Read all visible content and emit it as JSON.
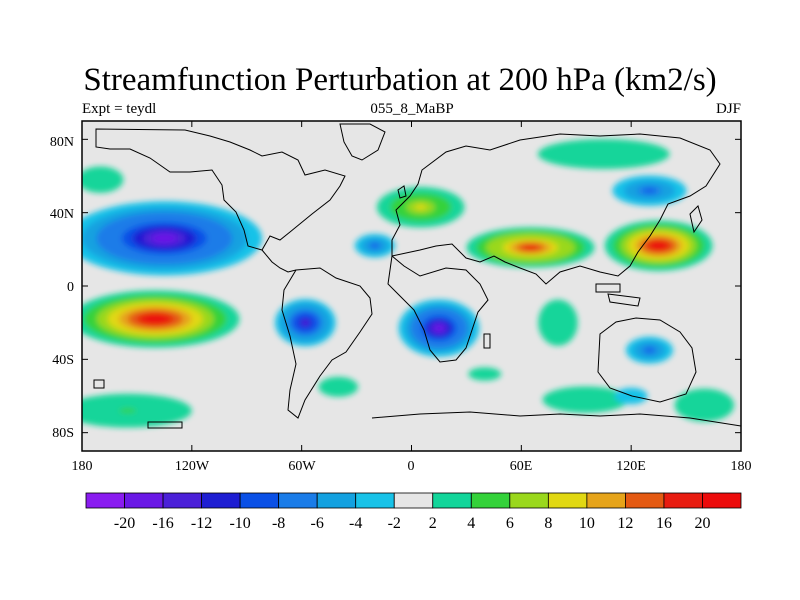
{
  "title": "Streamfunction Perturbation at 200 hPa (km2/s)",
  "left_label": "Expt = teydl",
  "center_label": "055_8_MaBP",
  "right_label": "DJF",
  "lat_labels": [
    "80N",
    "40N",
    "0",
    "40S",
    "80S"
  ],
  "lon_labels": [
    "180",
    "120W",
    "60W",
    "0",
    "60E",
    "120E",
    "180"
  ],
  "colorbar": {
    "labels": [
      "-20",
      "-16",
      "-12",
      "-10",
      "-8",
      "-6",
      "-4",
      "-2",
      "2",
      "4",
      "6",
      "8",
      "10",
      "12",
      "16",
      "20"
    ],
    "colors": [
      "#8a1cf0",
      "#6a18e6",
      "#4b20d8",
      "#1e1ed2",
      "#0a50e6",
      "#1a7ce8",
      "#13a1e0",
      "#18c2e8",
      "#e6e6e6",
      "#12d59a",
      "#34d23a",
      "#9ad81c",
      "#e1d812",
      "#e6a41a",
      "#e45a12",
      "#e81c10",
      "#ec0b0b"
    ]
  },
  "color_scale": {
    "background": "#e6e6e6",
    "negative": [
      "#18c2e8",
      "#13a1e0",
      "#1a7ce8",
      "#0a50e6",
      "#1e1ed2",
      "#4b20d8",
      "#6a18e6",
      "#8a1cf0"
    ],
    "positive": [
      "#12d59a",
      "#34d23a",
      "#9ad81c",
      "#e1d812",
      "#e6a41a",
      "#e45a12",
      "#e81c10",
      "#ec0b0b"
    ]
  },
  "anomalies": [
    {
      "lon": -135,
      "lat": 26,
      "rx": 58,
      "ry": 22,
      "value": -20
    },
    {
      "lon": -20,
      "lat": 22,
      "rx": 12,
      "ry": 7,
      "value": -11
    },
    {
      "lon": -58,
      "lat": -20,
      "rx": 18,
      "ry": 14,
      "value": -16
    },
    {
      "lon": 15,
      "lat": -23,
      "rx": 24,
      "ry": 17,
      "value": -18
    },
    {
      "lon": 130,
      "lat": 52,
      "rx": 22,
      "ry": 9,
      "value": -12
    },
    {
      "lon": 130,
      "lat": -35,
      "rx": 14,
      "ry": 8,
      "value": -10
    },
    {
      "lon": -170,
      "lat": 58,
      "rx": 14,
      "ry": 8,
      "value": 4
    },
    {
      "lon": -140,
      "lat": -18,
      "rx": 50,
      "ry": 17,
      "value": 21
    },
    {
      "lon": -155,
      "lat": -68,
      "rx": 38,
      "ry": 10,
      "value": 6
    },
    {
      "lon": 5,
      "lat": 43,
      "rx": 26,
      "ry": 12,
      "value": 11
    },
    {
      "lon": 65,
      "lat": 21,
      "rx": 38,
      "ry": 12,
      "value": 18
    },
    {
      "lon": 135,
      "lat": 22,
      "rx": 32,
      "ry": 15,
      "value": 22
    },
    {
      "lon": -40,
      "lat": -55,
      "rx": 12,
      "ry": 6,
      "value": 4
    },
    {
      "lon": 40,
      "lat": -48,
      "rx": 10,
      "ry": 4,
      "value": 4
    },
    {
      "lon": 80,
      "lat": -20,
      "rx": 12,
      "ry": 14,
      "value": 4
    },
    {
      "lon": 95,
      "lat": -62,
      "rx": 26,
      "ry": 8,
      "value": 4
    },
    {
      "lon": 160,
      "lat": -65,
      "rx": 18,
      "ry": 10,
      "value": 4
    },
    {
      "lon": 105,
      "lat": 72,
      "rx": 40,
      "ry": 9,
      "value": 4
    },
    {
      "lon": 120,
      "lat": -60,
      "rx": 10,
      "ry": 5,
      "value": -4
    }
  ]
}
